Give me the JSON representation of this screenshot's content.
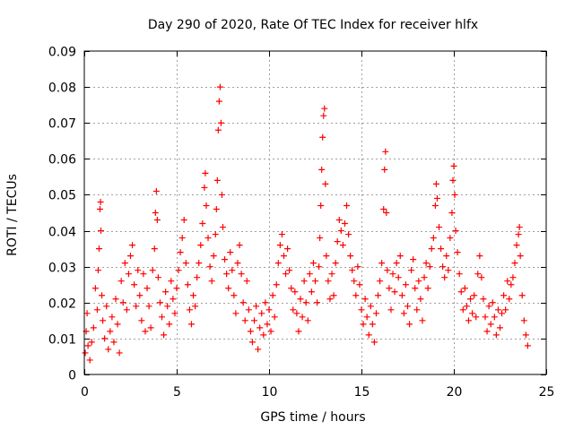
{
  "chart_data": {
    "type": "scatter",
    "title": "Day 290 of 2020, Rate Of TEC Index for receiver hlfx",
    "xlabel": "GPS time / hours",
    "ylabel": "ROTI / TECUs",
    "xlim": [
      0,
      25
    ],
    "ylim": [
      0,
      0.09
    ],
    "xticks": [
      0,
      5,
      10,
      15,
      20,
      25
    ],
    "xtick_labels": [
      "0",
      "5",
      "10",
      "15",
      "20",
      "25"
    ],
    "yticks": [
      0,
      0.01,
      0.02,
      0.03,
      0.04,
      0.05,
      0.06,
      0.07,
      0.08,
      0.09
    ],
    "ytick_labels": [
      "0",
      "0.01",
      "0.02",
      "0.03",
      "0.04",
      "0.05",
      "0.06",
      "0.07",
      "0.08",
      "0.09"
    ],
    "grid": true,
    "marker": "+",
    "color": "#ff0000",
    "series": [
      {
        "name": "ROTI",
        "points": [
          [
            0.05,
            0.006
          ],
          [
            0.1,
            0.012
          ],
          [
            0.15,
            0.017
          ],
          [
            0.2,
            0.008
          ],
          [
            0.3,
            0.004
          ],
          [
            0.4,
            0.009
          ],
          [
            0.5,
            0.013
          ],
          [
            0.6,
            0.024
          ],
          [
            0.7,
            0.018
          ],
          [
            0.75,
            0.029
          ],
          [
            0.8,
            0.035
          ],
          [
            0.85,
            0.046
          ],
          [
            0.88,
            0.048
          ],
          [
            0.9,
            0.04
          ],
          [
            0.95,
            0.022
          ],
          [
            1.0,
            0.015
          ],
          [
            1.1,
            0.01
          ],
          [
            1.2,
            0.019
          ],
          [
            1.3,
            0.007
          ],
          [
            1.4,
            0.012
          ],
          [
            1.5,
            0.016
          ],
          [
            1.6,
            0.009
          ],
          [
            1.7,
            0.021
          ],
          [
            1.8,
            0.014
          ],
          [
            1.9,
            0.006
          ],
          [
            2.0,
            0.026
          ],
          [
            2.1,
            0.02
          ],
          [
            2.2,
            0.031
          ],
          [
            2.3,
            0.018
          ],
          [
            2.4,
            0.028
          ],
          [
            2.5,
            0.033
          ],
          [
            2.6,
            0.036
          ],
          [
            2.7,
            0.025
          ],
          [
            2.8,
            0.019
          ],
          [
            2.9,
            0.029
          ],
          [
            3.0,
            0.022
          ],
          [
            3.1,
            0.015
          ],
          [
            3.2,
            0.028
          ],
          [
            3.3,
            0.012
          ],
          [
            3.4,
            0.024
          ],
          [
            3.5,
            0.019
          ],
          [
            3.6,
            0.013
          ],
          [
            3.7,
            0.029
          ],
          [
            3.8,
            0.035
          ],
          [
            3.85,
            0.045
          ],
          [
            3.9,
            0.051
          ],
          [
            3.95,
            0.043
          ],
          [
            4.0,
            0.027
          ],
          [
            4.1,
            0.02
          ],
          [
            4.2,
            0.016
          ],
          [
            4.3,
            0.011
          ],
          [
            4.4,
            0.023
          ],
          [
            4.5,
            0.019
          ],
          [
            4.6,
            0.014
          ],
          [
            4.7,
            0.026
          ],
          [
            4.8,
            0.021
          ],
          [
            4.9,
            0.017
          ],
          [
            5.0,
            0.024
          ],
          [
            5.1,
            0.029
          ],
          [
            5.2,
            0.034
          ],
          [
            5.3,
            0.038
          ],
          [
            5.4,
            0.043
          ],
          [
            5.5,
            0.031
          ],
          [
            5.6,
            0.025
          ],
          [
            5.7,
            0.018
          ],
          [
            5.8,
            0.014
          ],
          [
            5.9,
            0.022
          ],
          [
            6.0,
            0.019
          ],
          [
            6.1,
            0.027
          ],
          [
            6.2,
            0.031
          ],
          [
            6.3,
            0.036
          ],
          [
            6.4,
            0.042
          ],
          [
            6.5,
            0.052
          ],
          [
            6.55,
            0.056
          ],
          [
            6.6,
            0.047
          ],
          [
            6.7,
            0.038
          ],
          [
            6.8,
            0.03
          ],
          [
            6.9,
            0.026
          ],
          [
            7.0,
            0.033
          ],
          [
            7.1,
            0.039
          ],
          [
            7.15,
            0.046
          ],
          [
            7.2,
            0.054
          ],
          [
            7.25,
            0.068
          ],
          [
            7.3,
            0.076
          ],
          [
            7.35,
            0.08
          ],
          [
            7.4,
            0.07
          ],
          [
            7.45,
            0.05
          ],
          [
            7.5,
            0.041
          ],
          [
            7.6,
            0.032
          ],
          [
            7.7,
            0.028
          ],
          [
            7.8,
            0.024
          ],
          [
            7.9,
            0.034
          ],
          [
            8.0,
            0.029
          ],
          [
            8.1,
            0.022
          ],
          [
            8.2,
            0.017
          ],
          [
            8.3,
            0.031
          ],
          [
            8.4,
            0.036
          ],
          [
            8.5,
            0.028
          ],
          [
            8.6,
            0.02
          ],
          [
            8.7,
            0.015
          ],
          [
            8.8,
            0.026
          ],
          [
            8.9,
            0.018
          ],
          [
            9.0,
            0.012
          ],
          [
            9.1,
            0.009
          ],
          [
            9.2,
            0.015
          ],
          [
            9.3,
            0.019
          ],
          [
            9.4,
            0.007
          ],
          [
            9.5,
            0.013
          ],
          [
            9.6,
            0.017
          ],
          [
            9.7,
            0.011
          ],
          [
            9.8,
            0.02
          ],
          [
            9.9,
            0.014
          ],
          [
            10.0,
            0.018
          ],
          [
            10.1,
            0.012
          ],
          [
            10.2,
            0.022
          ],
          [
            10.3,
            0.016
          ],
          [
            10.4,
            0.025
          ],
          [
            10.5,
            0.031
          ],
          [
            10.6,
            0.036
          ],
          [
            10.7,
            0.039
          ],
          [
            10.8,
            0.033
          ],
          [
            10.9,
            0.028
          ],
          [
            11.0,
            0.035
          ],
          [
            11.1,
            0.029
          ],
          [
            11.2,
            0.024
          ],
          [
            11.3,
            0.018
          ],
          [
            11.4,
            0.023
          ],
          [
            11.5,
            0.017
          ],
          [
            11.6,
            0.012
          ],
          [
            11.7,
            0.021
          ],
          [
            11.8,
            0.016
          ],
          [
            11.9,
            0.026
          ],
          [
            12.0,
            0.02
          ],
          [
            12.1,
            0.015
          ],
          [
            12.2,
            0.028
          ],
          [
            12.3,
            0.023
          ],
          [
            12.4,
            0.031
          ],
          [
            12.5,
            0.026
          ],
          [
            12.6,
            0.02
          ],
          [
            12.7,
            0.03
          ],
          [
            12.75,
            0.038
          ],
          [
            12.8,
            0.047
          ],
          [
            12.85,
            0.057
          ],
          [
            12.9,
            0.066
          ],
          [
            12.95,
            0.072
          ],
          [
            13.0,
            0.074
          ],
          [
            13.05,
            0.053
          ],
          [
            13.1,
            0.033
          ],
          [
            13.2,
            0.026
          ],
          [
            13.3,
            0.021
          ],
          [
            13.4,
            0.028
          ],
          [
            13.5,
            0.022
          ],
          [
            13.6,
            0.031
          ],
          [
            13.7,
            0.037
          ],
          [
            13.8,
            0.043
          ],
          [
            13.9,
            0.04
          ],
          [
            14.0,
            0.036
          ],
          [
            14.1,
            0.042
          ],
          [
            14.2,
            0.047
          ],
          [
            14.3,
            0.039
          ],
          [
            14.4,
            0.033
          ],
          [
            14.5,
            0.029
          ],
          [
            14.6,
            0.026
          ],
          [
            14.7,
            0.022
          ],
          [
            14.8,
            0.03
          ],
          [
            14.9,
            0.025
          ],
          [
            15.0,
            0.018
          ],
          [
            15.1,
            0.014
          ],
          [
            15.2,
            0.021
          ],
          [
            15.3,
            0.016
          ],
          [
            15.4,
            0.011
          ],
          [
            15.5,
            0.019
          ],
          [
            15.6,
            0.014
          ],
          [
            15.7,
            0.009
          ],
          [
            15.8,
            0.017
          ],
          [
            15.9,
            0.022
          ],
          [
            16.0,
            0.026
          ],
          [
            16.1,
            0.031
          ],
          [
            16.2,
            0.046
          ],
          [
            16.25,
            0.057
          ],
          [
            16.3,
            0.062
          ],
          [
            16.35,
            0.045
          ],
          [
            16.4,
            0.029
          ],
          [
            16.5,
            0.024
          ],
          [
            16.6,
            0.018
          ],
          [
            16.7,
            0.028
          ],
          [
            16.8,
            0.023
          ],
          [
            16.9,
            0.031
          ],
          [
            17.0,
            0.027
          ],
          [
            17.1,
            0.033
          ],
          [
            17.2,
            0.022
          ],
          [
            17.3,
            0.017
          ],
          [
            17.4,
            0.025
          ],
          [
            17.5,
            0.019
          ],
          [
            17.6,
            0.014
          ],
          [
            17.7,
            0.029
          ],
          [
            17.8,
            0.032
          ],
          [
            17.9,
            0.024
          ],
          [
            18.0,
            0.018
          ],
          [
            18.1,
            0.026
          ],
          [
            18.2,
            0.021
          ],
          [
            18.3,
            0.015
          ],
          [
            18.4,
            0.027
          ],
          [
            18.5,
            0.031
          ],
          [
            18.6,
            0.024
          ],
          [
            18.7,
            0.03
          ],
          [
            18.8,
            0.035
          ],
          [
            18.9,
            0.038
          ],
          [
            19.0,
            0.047
          ],
          [
            19.05,
            0.053
          ],
          [
            19.1,
            0.049
          ],
          [
            19.2,
            0.041
          ],
          [
            19.3,
            0.035
          ],
          [
            19.4,
            0.03
          ],
          [
            19.5,
            0.027
          ],
          [
            19.6,
            0.033
          ],
          [
            19.7,
            0.029
          ],
          [
            19.8,
            0.038
          ],
          [
            19.9,
            0.045
          ],
          [
            19.95,
            0.054
          ],
          [
            20.0,
            0.058
          ],
          [
            20.05,
            0.05
          ],
          [
            20.1,
            0.04
          ],
          [
            20.2,
            0.034
          ],
          [
            20.3,
            0.028
          ],
          [
            20.4,
            0.023
          ],
          [
            20.5,
            0.018
          ],
          [
            20.6,
            0.024
          ],
          [
            20.7,
            0.019
          ],
          [
            20.8,
            0.015
          ],
          [
            20.9,
            0.021
          ],
          [
            21.0,
            0.017
          ],
          [
            21.1,
            0.022
          ],
          [
            21.2,
            0.016
          ],
          [
            21.3,
            0.028
          ],
          [
            21.4,
            0.033
          ],
          [
            21.5,
            0.027
          ],
          [
            21.6,
            0.021
          ],
          [
            21.7,
            0.016
          ],
          [
            21.8,
            0.012
          ],
          [
            21.9,
            0.019
          ],
          [
            22.0,
            0.014
          ],
          [
            22.1,
            0.02
          ],
          [
            22.2,
            0.016
          ],
          [
            22.3,
            0.011
          ],
          [
            22.4,
            0.018
          ],
          [
            22.5,
            0.013
          ],
          [
            22.6,
            0.017
          ],
          [
            22.7,
            0.022
          ],
          [
            22.8,
            0.018
          ],
          [
            22.9,
            0.026
          ],
          [
            23.0,
            0.021
          ],
          [
            23.1,
            0.025
          ],
          [
            23.2,
            0.027
          ],
          [
            23.3,
            0.031
          ],
          [
            23.4,
            0.036
          ],
          [
            23.5,
            0.039
          ],
          [
            23.55,
            0.041
          ],
          [
            23.6,
            0.033
          ],
          [
            23.7,
            0.022
          ],
          [
            23.8,
            0.015
          ],
          [
            23.9,
            0.011
          ],
          [
            24.0,
            0.008
          ]
        ]
      }
    ]
  }
}
